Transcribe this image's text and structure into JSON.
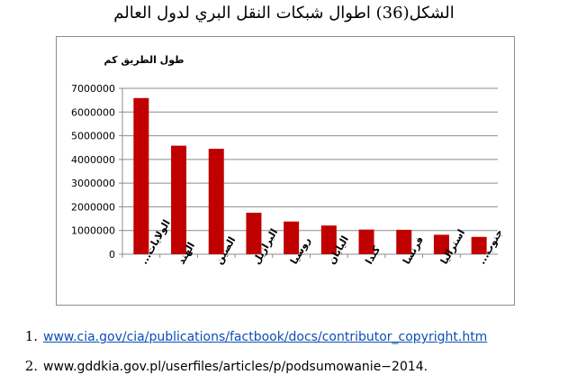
{
  "title": "الشكل(36) اطوال شبكات النقل البري لدول العالم",
  "chart_data": {
    "type": "bar",
    "ylabel": "طول الطريق كم",
    "ylim": [
      0,
      7000000
    ],
    "yticks": [
      "0",
      "1000000",
      "2000000",
      "3000000",
      "4000000",
      "5000000",
      "6000000",
      "7000000"
    ],
    "grid": true,
    "categories": [
      "الولايات...",
      "الهند",
      "الصين",
      "البرازيل",
      "روسيا",
      "اليابان",
      "كندا",
      "فرنسا",
      "استراليا",
      "جنوب..."
    ],
    "values": [
      6590000,
      4580000,
      4450000,
      1750000,
      1380000,
      1210000,
      1040000,
      1030000,
      820000,
      730000
    ],
    "bar_color": "#c00000"
  },
  "references": [
    {
      "num": "1.",
      "text": "www.cia.gov/cia/publications/factbook/docs/contributor_copyright.htm",
      "link": true
    },
    {
      "num": "2.",
      "text": "www.gddkia.gov.pl/userfiles/articles/p/podsumowanie−2014.",
      "link": false
    }
  ]
}
